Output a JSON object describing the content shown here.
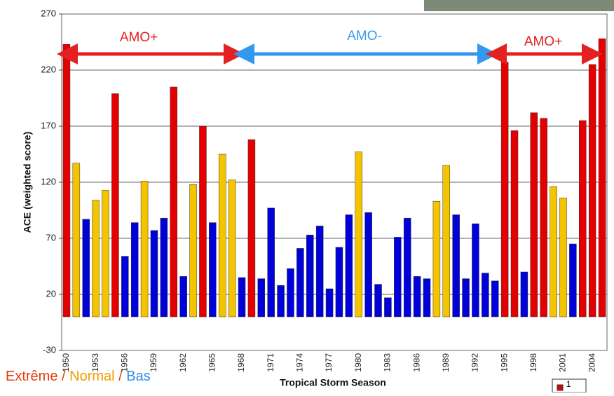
{
  "chart_data": {
    "type": "bar",
    "y_label": "ACE (weighted score)",
    "x_label": "Tropical Storm Season",
    "categories": [
      "1950",
      null,
      null,
      "1953",
      null,
      null,
      "1956",
      null,
      null,
      "1959",
      null,
      null,
      "1962",
      null,
      null,
      "1965",
      null,
      null,
      "1968",
      null,
      null,
      "1971",
      null,
      null,
      "1974",
      null,
      null,
      "1977",
      null,
      null,
      "1980",
      null,
      null,
      "1983",
      null,
      null,
      "1986",
      null,
      null,
      "1989",
      null,
      null,
      "1992",
      null,
      null,
      "1995",
      null,
      null,
      "1998",
      null,
      null,
      "2001",
      null,
      null,
      "2004",
      null
    ],
    "values": [
      243,
      137,
      87,
      104,
      113,
      199,
      54,
      84,
      121,
      77,
      88,
      205,
      36,
      118,
      170,
      84,
      145,
      122,
      35,
      158,
      34,
      97,
      28,
      43,
      61,
      73,
      81,
      25,
      62,
      91,
      147,
      93,
      29,
      17,
      71,
      88,
      36,
      34,
      103,
      135,
      91,
      34,
      83,
      39,
      32,
      227,
      166,
      40,
      182,
      177,
      116,
      106,
      65,
      175,
      225,
      248
    ],
    "colors": [
      "#e30000",
      "#f5c400",
      "#0000d8",
      "#f5c400",
      "#f5c400",
      "#e30000",
      "#0000d8",
      "#0000d8",
      "#f5c400",
      "#0000d8",
      "#0000d8",
      "#e30000",
      "#0000d8",
      "#f5c400",
      "#e30000",
      "#0000d8",
      "#f5c400",
      "#f5c400",
      "#0000d8",
      "#e30000",
      "#0000d8",
      "#0000d8",
      "#0000d8",
      "#0000d8",
      "#0000d8",
      "#0000d8",
      "#0000d8",
      "#0000d8",
      "#0000d8",
      "#0000d8",
      "#f5c400",
      "#0000d8",
      "#0000d8",
      "#0000d8",
      "#0000d8",
      "#0000d8",
      "#0000d8",
      "#0000d8",
      "#f5c400",
      "#f5c400",
      "#0000d8",
      "#0000d8",
      "#0000d8",
      "#0000d8",
      "#0000d8",
      "#e30000",
      "#e30000",
      "#0000d8",
      "#e30000",
      "#e30000",
      "#f5c400",
      "#f5c400",
      "#0000d8",
      "#e30000",
      "#e30000",
      "#e30000"
    ],
    "ylim": [
      -30,
      270
    ],
    "yticks": [
      -30,
      20,
      70,
      120,
      170,
      220,
      270
    ],
    "grid": true,
    "annotations": [
      "AMO+",
      "AMO-",
      "AMO+"
    ],
    "footer": [
      "Extrême",
      "/",
      "Normal",
      "/",
      "Bas"
    ],
    "legend": "1"
  }
}
